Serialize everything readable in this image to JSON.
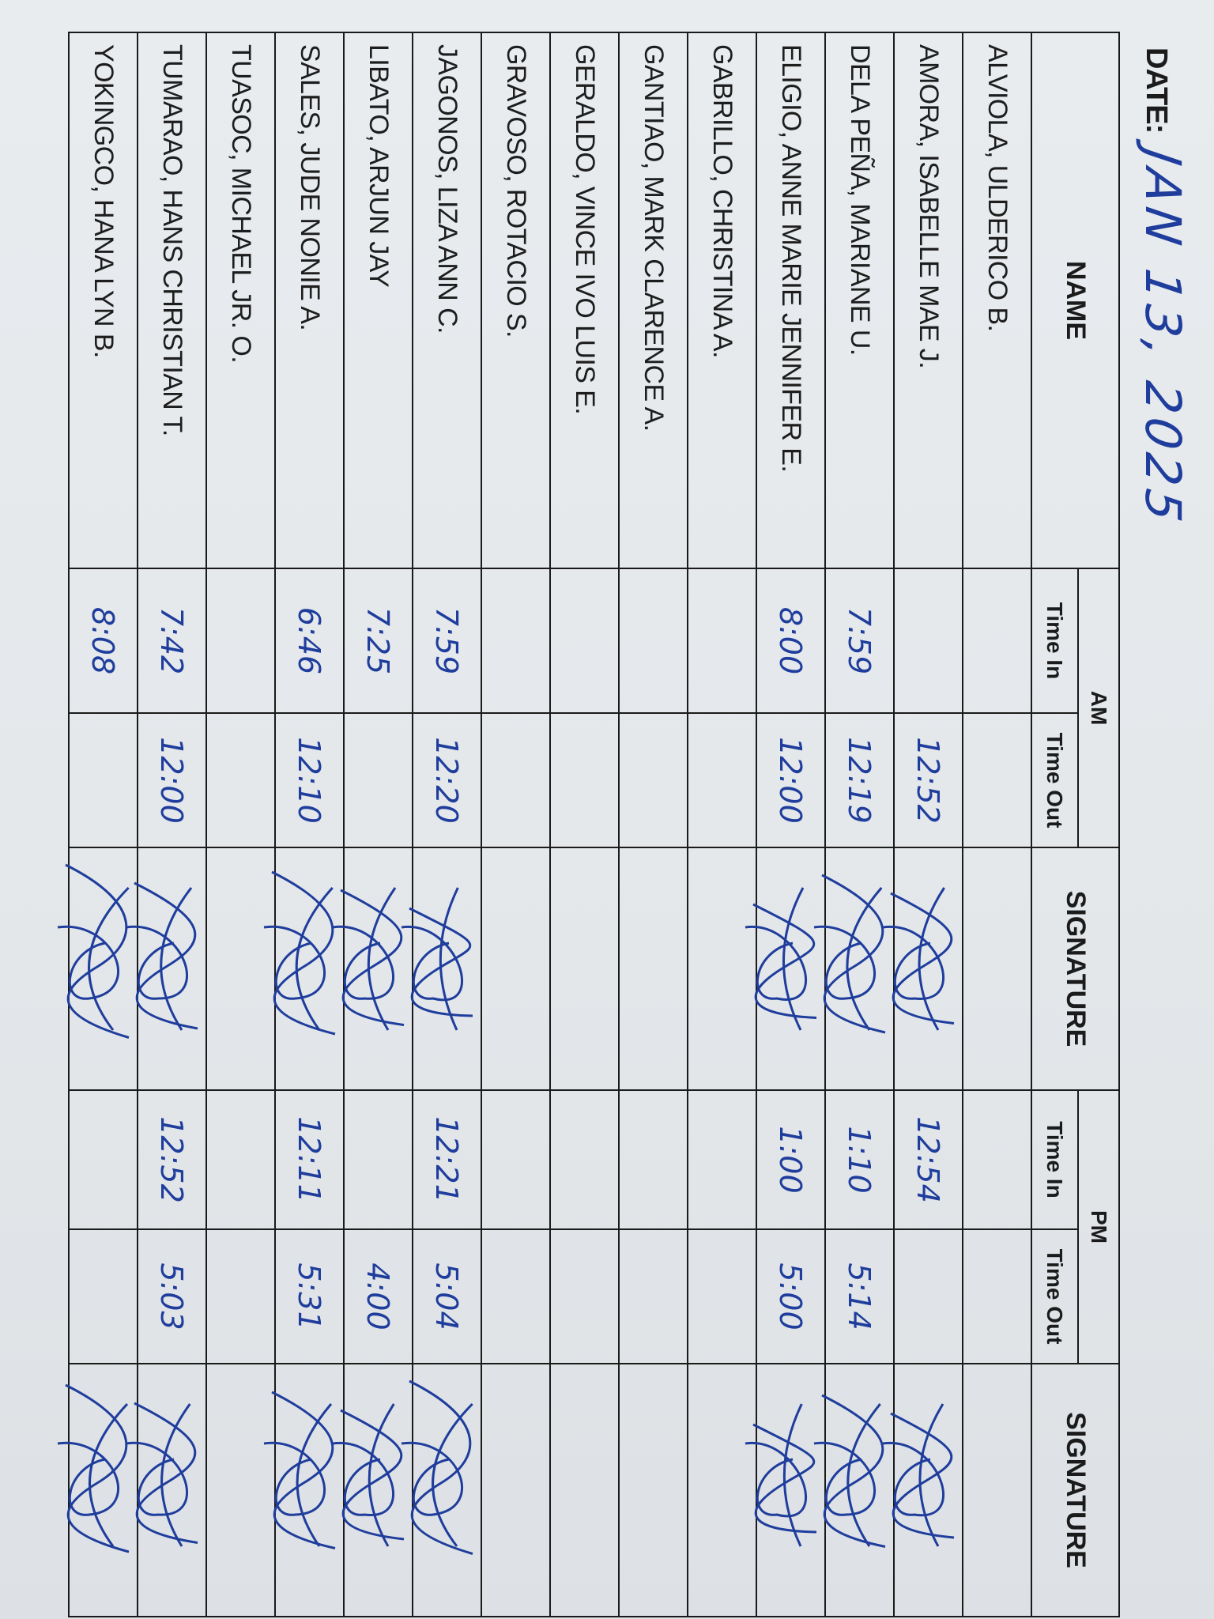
{
  "header": {
    "date_label": "DATE:",
    "date_value": "JAN 13, 2025"
  },
  "columns": {
    "name": "NAME",
    "am": "AM",
    "pm": "PM",
    "time_in": "Time In",
    "time_out": "Time Out",
    "signature": "SIGNATURE"
  },
  "ink_color": "#1f3d9c",
  "rows": [
    {
      "name": "ALVIOLA, ULDERICO B.",
      "am_in": "",
      "am_out": "",
      "am_signed": false,
      "pm_in": "",
      "pm_out": "",
      "pm_signed": false
    },
    {
      "name": "AMORA, ISABELLE MAE J.",
      "am_in": "",
      "am_out": "12:52",
      "am_signed": true,
      "pm_in": "12:54",
      "pm_out": "",
      "pm_signed": true
    },
    {
      "name": "DELA PEÑA, MARIANE U.",
      "am_in": "7:59",
      "am_out": "12:19",
      "am_signed": true,
      "pm_in": "1:10",
      "pm_out": "5:14",
      "pm_signed": true
    },
    {
      "name": "ELIGIO, ANNE MARIE JENNIFER E.",
      "am_in": "8:00",
      "am_out": "12:00",
      "am_signed": true,
      "pm_in": "1:00",
      "pm_out": "5:00",
      "pm_signed": true
    },
    {
      "name": "GABRILLO, CHRISTINA A.",
      "am_in": "",
      "am_out": "",
      "am_signed": false,
      "pm_in": "",
      "pm_out": "",
      "pm_signed": false
    },
    {
      "name": "GANTIAO, MARK CLARENCE A.",
      "am_in": "",
      "am_out": "",
      "am_signed": false,
      "pm_in": "",
      "pm_out": "",
      "pm_signed": false
    },
    {
      "name": "GERALDO, VINCE IVO LUIS E.",
      "am_in": "",
      "am_out": "",
      "am_signed": false,
      "pm_in": "",
      "pm_out": "",
      "pm_signed": false
    },
    {
      "name": "GRAVOSO, ROTACIO S.",
      "am_in": "",
      "am_out": "",
      "am_signed": false,
      "pm_in": "",
      "pm_out": "",
      "pm_signed": false
    },
    {
      "name": "JAGONOS, LIZA ANN C.",
      "am_in": "7:59",
      "am_out": "12:20",
      "am_signed": true,
      "pm_in": "12:21",
      "pm_out": "5:04",
      "pm_signed": true
    },
    {
      "name": "LIBATO, ARJUN JAY",
      "am_in": "7:25",
      "am_out": "",
      "am_signed": true,
      "pm_in": "",
      "pm_out": "4:00",
      "pm_signed": true
    },
    {
      "name": "SALES, JUDE NONIE A.",
      "am_in": "6:46",
      "am_out": "12:10",
      "am_signed": true,
      "pm_in": "12:11",
      "pm_out": "5:31",
      "pm_signed": true
    },
    {
      "name": "TUASOC, MICHAEL JR. O.",
      "am_in": "",
      "am_out": "",
      "am_signed": false,
      "pm_in": "",
      "pm_out": "",
      "pm_signed": false
    },
    {
      "name": "TUMARAO, HANS CHRISTIAN T.",
      "am_in": "7:42",
      "am_out": "12:00",
      "am_signed": true,
      "pm_in": "12:52",
      "pm_out": "5:03",
      "pm_signed": true
    },
    {
      "name": "YOKINGCO, HANA LYN B.",
      "am_in": "8:08",
      "am_out": "",
      "am_signed": true,
      "pm_in": "",
      "pm_out": "",
      "pm_signed": true
    }
  ]
}
